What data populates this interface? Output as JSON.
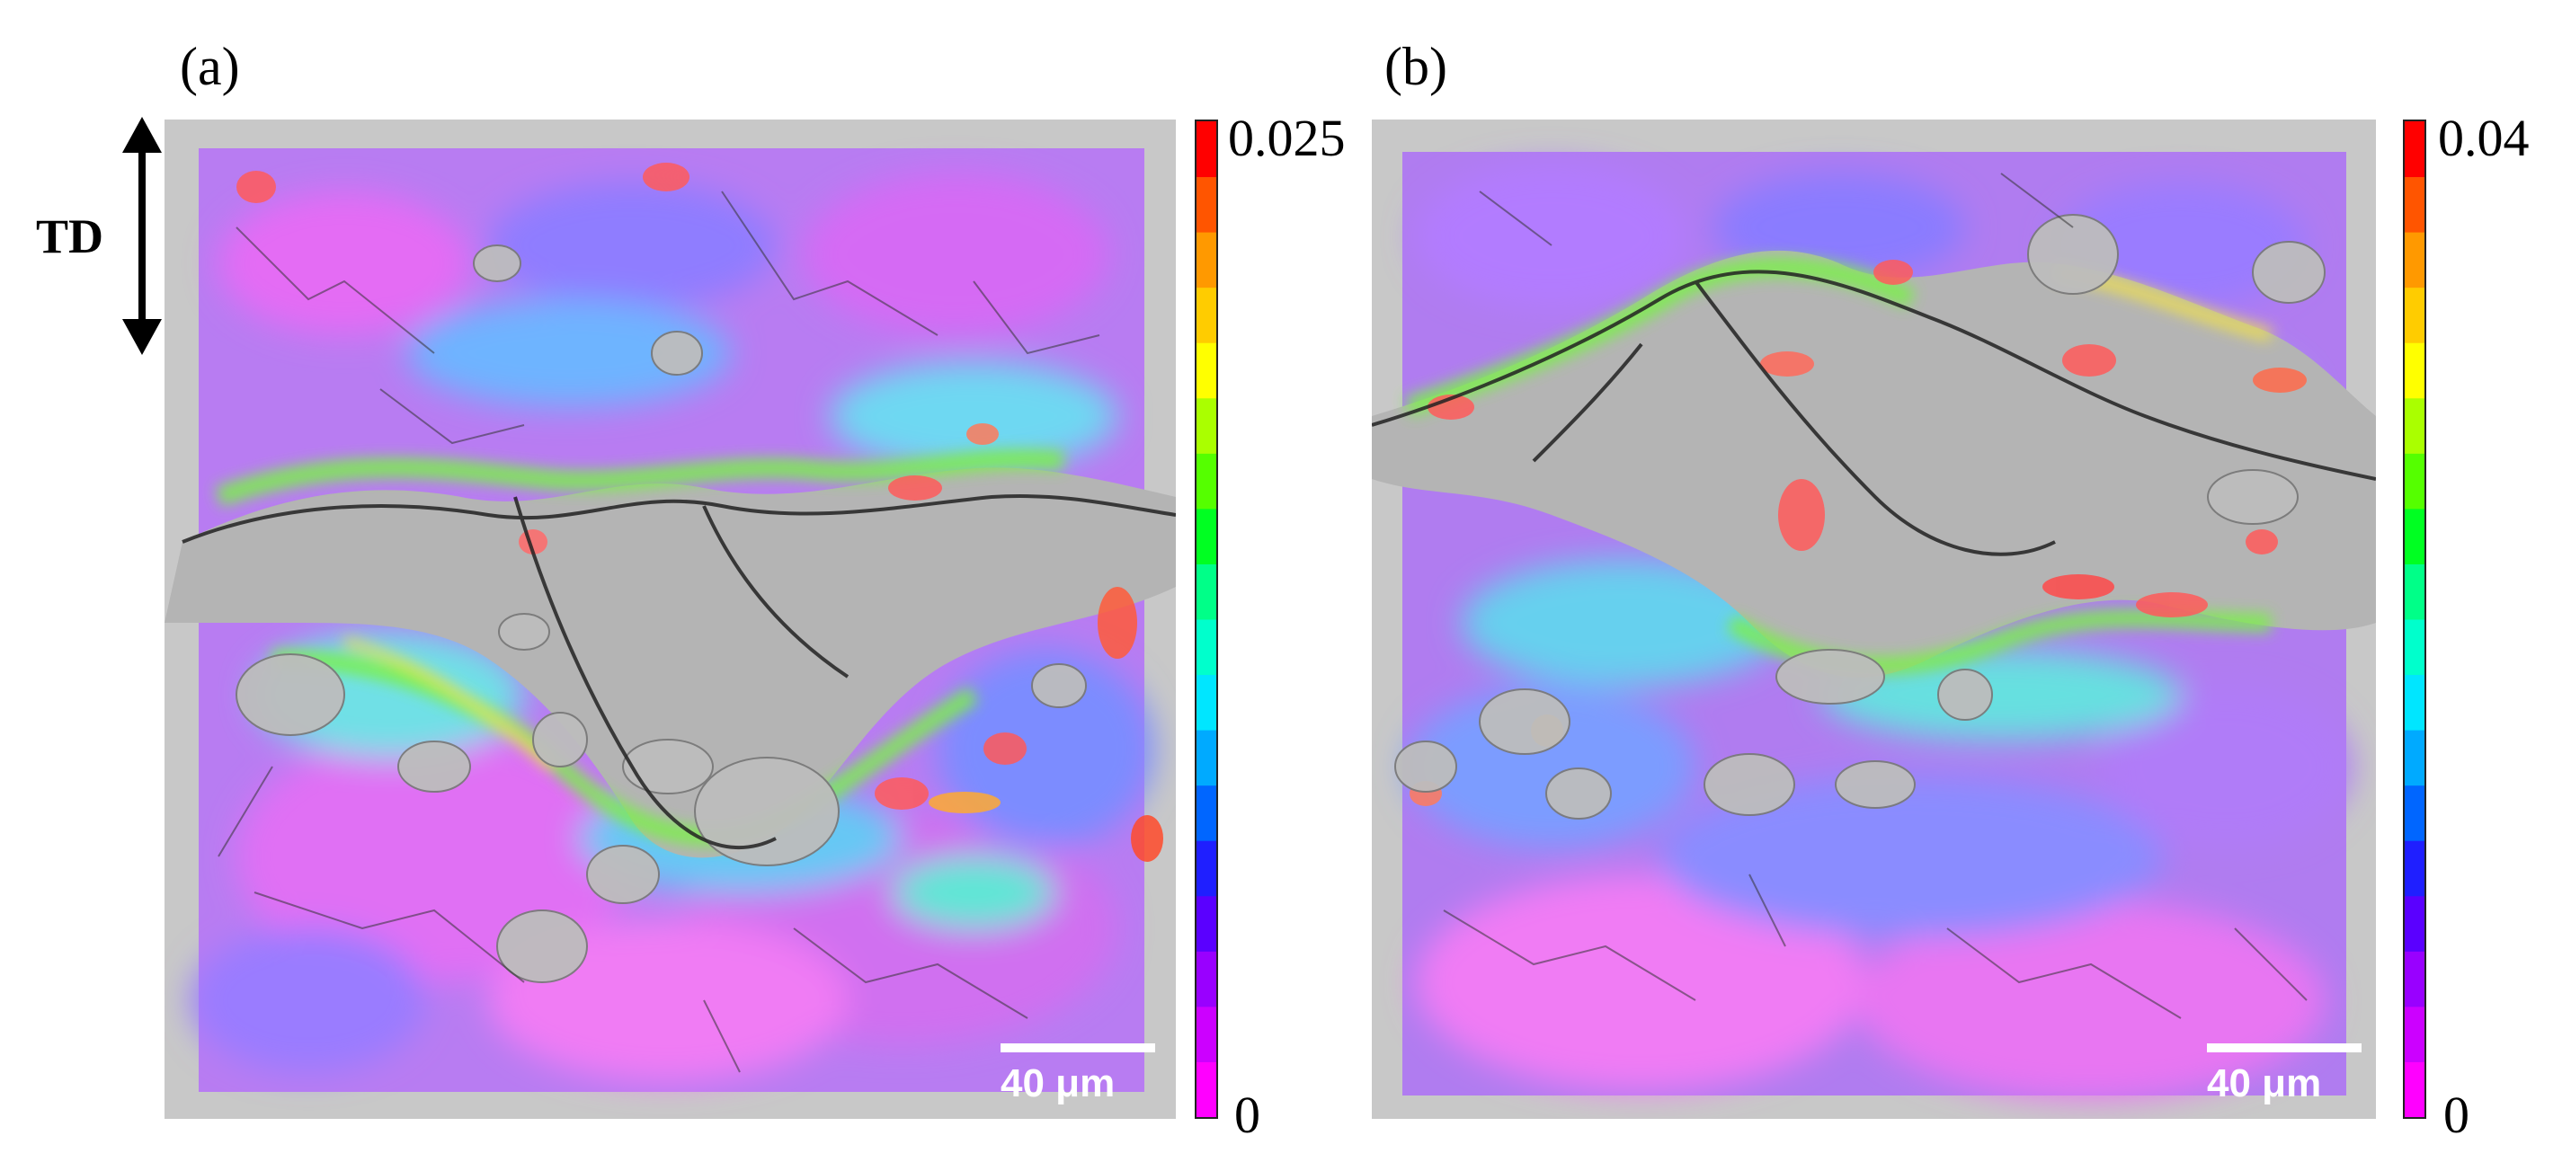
{
  "panels": [
    {
      "label": "(a)",
      "colorbar": {
        "max_label": "0.025",
        "min_label": "0"
      },
      "scale_bar": {
        "label": "40 μm"
      }
    },
    {
      "label": "(b)",
      "colorbar": {
        "max_label": "0.04",
        "min_label": "0"
      },
      "scale_bar": {
        "label": "40 μm"
      }
    }
  ],
  "direction_label": "TD",
  "colormap": [
    "#ff00ff",
    "#cc00ff",
    "#9900ff",
    "#5a00ff",
    "#1f1fff",
    "#0066ff",
    "#00aaff",
    "#00e6ff",
    "#00ffcc",
    "#00ff88",
    "#00ff22",
    "#55ff00",
    "#aaff00",
    "#ffff00",
    "#ffcc00",
    "#ff9900",
    "#ff5500",
    "#ff0000"
  ]
}
